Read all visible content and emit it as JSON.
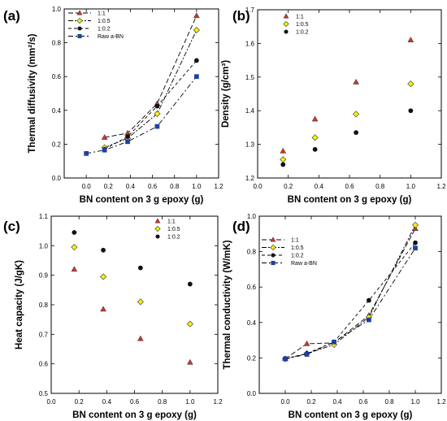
{
  "colors": {
    "red": "#c8372d",
    "yellow": "#f2f20a",
    "black": "#111111",
    "blue": "#1f3fa6"
  },
  "chart_data": [
    {
      "panel_label": "(a)",
      "type": "line",
      "xlabel": "BN content on 3 g epoxy (g)",
      "ylabel": "Thermal diffusivity (mm²/s)",
      "xlim": [
        -0.2,
        1.2
      ],
      "ylim": [
        0,
        1.0
      ],
      "xticks": [
        "0.0",
        "0.2",
        "0.4",
        "0.6",
        "0.8",
        "1.0",
        "1.2"
      ],
      "yticks": [
        "0.0",
        "0.2",
        "0.4",
        "0.6",
        "0.8",
        "1.0"
      ],
      "legend_position": "top-left",
      "series": [
        {
          "name": "1:1",
          "marker": "triangle",
          "color": "#c8372d",
          "dash": "6,3",
          "x": [
            0.166,
            0.375,
            0.643,
            1.0
          ],
          "y": [
            0.24,
            0.265,
            0.44,
            0.96
          ]
        },
        {
          "name": "1:0.5",
          "marker": "diamond",
          "color": "#f2f20a",
          "dash": "6,2,2,2",
          "x": [
            0.166,
            0.375,
            0.643,
            1.0
          ],
          "y": [
            0.18,
            0.235,
            0.38,
            0.875
          ]
        },
        {
          "name": "1:0.2",
          "marker": "circle",
          "color": "#111111",
          "dash": "4,3",
          "x": [
            0.166,
            0.375,
            0.643,
            1.0
          ],
          "y": [
            0.17,
            0.245,
            0.425,
            0.695
          ]
        },
        {
          "name": "Raw a-BN",
          "marker": "square",
          "color": "#1f3fa6",
          "dash": "6,3,2,3",
          "x": [
            0.0,
            0.166,
            0.375,
            0.643,
            1.0
          ],
          "y": [
            0.145,
            0.165,
            0.215,
            0.305,
            0.6
          ]
        }
      ]
    },
    {
      "panel_label": "(b)",
      "type": "scatter",
      "xlabel": "BN content on 3 g epoxy (g)",
      "ylabel": "Density (g/cm³)",
      "xlim": [
        0.0,
        1.2
      ],
      "ylim": [
        1.2,
        1.7
      ],
      "xticks": [
        "0.0",
        "0.2",
        "0.4",
        "0.6",
        "0.8",
        "1.0",
        "1.2"
      ],
      "yticks": [
        "1.2",
        "1.3",
        "1.4",
        "1.5",
        "1.6",
        "1.7"
      ],
      "legend_position": "top-left",
      "series": [
        {
          "name": "1:1",
          "marker": "triangle",
          "color": "#c8372d",
          "x": [
            0.166,
            0.375,
            0.643,
            1.0
          ],
          "y": [
            1.28,
            1.375,
            1.485,
            1.61
          ]
        },
        {
          "name": "1:0.5",
          "marker": "diamond",
          "color": "#f2f20a",
          "x": [
            0.166,
            0.375,
            0.643,
            1.0
          ],
          "y": [
            1.255,
            1.32,
            1.39,
            1.48
          ]
        },
        {
          "name": "1:0.2",
          "marker": "circle",
          "color": "#111111",
          "x": [
            0.166,
            0.375,
            0.643,
            1.0
          ],
          "y": [
            1.24,
            1.285,
            1.335,
            1.4
          ]
        }
      ]
    },
    {
      "panel_label": "(c)",
      "type": "scatter",
      "xlabel": "BN content on 3 g epoxy (g)",
      "ylabel": "Heat capacity (J/gK)",
      "xlim": [
        0.0,
        1.2
      ],
      "ylim": [
        0.5,
        1.1
      ],
      "xticks": [
        "0.0",
        "0.2",
        "0.4",
        "0.6",
        "0.8",
        "1.0",
        "1.2"
      ],
      "yticks": [
        "0.5",
        "0.6",
        "0.7",
        "0.8",
        "0.9",
        "1.0",
        "1.1"
      ],
      "legend_position": "top-right",
      "series": [
        {
          "name": "1:1",
          "marker": "triangle",
          "color": "#c8372d",
          "x": [
            0.166,
            0.375,
            0.643,
            1.0
          ],
          "y": [
            0.92,
            0.785,
            0.685,
            0.605
          ]
        },
        {
          "name": "1:0.5",
          "marker": "diamond",
          "color": "#f2f20a",
          "x": [
            0.166,
            0.375,
            0.643,
            1.0
          ],
          "y": [
            0.995,
            0.895,
            0.81,
            0.735
          ]
        },
        {
          "name": "1:0.2",
          "marker": "circle",
          "color": "#111111",
          "x": [
            0.166,
            0.375,
            0.643,
            1.0
          ],
          "y": [
            1.045,
            0.985,
            0.925,
            0.87
          ]
        }
      ]
    },
    {
      "panel_label": "(d)",
      "type": "line",
      "xlabel": "BN content on 3 g epoxy (g)",
      "ylabel": "Thermal conductivity (W/mK)",
      "xlim": [
        -0.2,
        1.2
      ],
      "ylim": [
        0,
        1.0
      ],
      "xticks": [
        "0.0",
        "0.2",
        "0.4",
        "0.6",
        "0.8",
        "1.0",
        "1.2"
      ],
      "yticks": [
        "0.0",
        "0.2",
        "0.4",
        "0.6",
        "0.8",
        "1.0"
      ],
      "legend_position": "top-left",
      "series": [
        {
          "name": "1:1",
          "marker": "triangle",
          "color": "#c8372d",
          "dash": "6,3",
          "x": [
            0.0,
            0.166,
            0.375,
            0.643,
            1.0
          ],
          "y": [
            0.195,
            0.28,
            0.285,
            0.44,
            0.93
          ]
        },
        {
          "name": "1:0.5",
          "marker": "diamond",
          "color": "#f2f20a",
          "dash": "6,2,2,2",
          "x": [
            0.0,
            0.166,
            0.375,
            0.643,
            1.0
          ],
          "y": [
            0.195,
            0.225,
            0.275,
            0.43,
            0.95
          ]
        },
        {
          "name": "1:0.2",
          "marker": "circle",
          "color": "#111111",
          "dash": "4,3",
          "x": [
            0.0,
            0.166,
            0.375,
            0.643,
            1.0
          ],
          "y": [
            0.195,
            0.225,
            0.29,
            0.525,
            0.85
          ]
        },
        {
          "name": "Raw a-BN",
          "marker": "square",
          "color": "#1f3fa6",
          "dash": "6,3,2,3",
          "x": [
            0.0,
            0.166,
            0.375,
            0.643,
            1.0
          ],
          "y": [
            0.195,
            0.22,
            0.29,
            0.415,
            0.82
          ]
        }
      ]
    }
  ]
}
